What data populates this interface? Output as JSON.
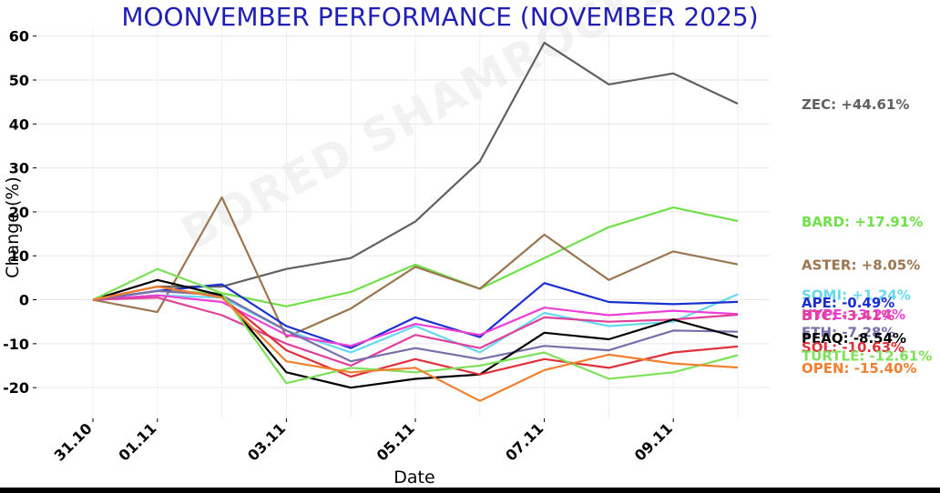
{
  "chart_data": {
    "type": "line",
    "title": "MOONVEMBER PERFORMANCE (NOVEMBER 2025)",
    "xlabel": "Date",
    "ylabel": "Change (%)",
    "watermark": "BORED SHAMROCKS",
    "ylim": [
      -27,
      62
    ],
    "yticks": [
      -20,
      -10,
      0,
      10,
      20,
      30,
      40,
      50,
      60
    ],
    "x": [
      "31.10",
      "01.11",
      "02.11",
      "03.11",
      "04.11",
      "05.11",
      "06.11",
      "07.11",
      "08.11",
      "09.11",
      "10.11"
    ],
    "xtick_labels": [
      "31.10",
      "01.11",
      "03.11",
      "05.11",
      "07.11",
      "09.11"
    ],
    "grid": true,
    "series": [
      {
        "name": "ZEC",
        "color": "#606060",
        "label": "ZEC: +44.61%",
        "values": [
          0,
          3,
          3,
          7,
          9.5,
          17.8,
          31.5,
          58.5,
          49,
          51.5,
          44.61
        ]
      },
      {
        "name": "BARD",
        "color": "#6fe04a",
        "label": "BARD: +17.91%",
        "values": [
          0,
          2,
          1.5,
          -1.5,
          1.8,
          8,
          2.5,
          9.5,
          16.5,
          21,
          17.91
        ]
      },
      {
        "name": "ASTER",
        "color": "#9b7650",
        "label": "ASTER: +8.05%",
        "values": [
          0,
          -2.8,
          23.3,
          -8.5,
          -2,
          7.5,
          2.5,
          14.8,
          4.5,
          11,
          8.05
        ]
      },
      {
        "name": "SOMI",
        "color": "#66d9f0",
        "label": "SOMI: +1.24%",
        "values": [
          0,
          1,
          0.5,
          -7,
          -12,
          -6,
          -12,
          -3,
          -6,
          -5,
          1.24
        ]
      },
      {
        "name": "APE",
        "color": "#1a2fd0",
        "label": "APE: -0.49%",
        "values": [
          0,
          2,
          3.5,
          -6,
          -11,
          -4,
          -8.5,
          3.8,
          -0.5,
          -1,
          -0.49
        ]
      },
      {
        "name": "HYPE",
        "color": "#ee3fd6",
        "label": "HYPE: -3.24%",
        "values": [
          0,
          1,
          -0.5,
          -8,
          -10.5,
          -5.5,
          -8,
          -1.8,
          -3.5,
          -2.5,
          -3.24
        ]
      },
      {
        "name": "BTC",
        "color": "#e0409a",
        "label": "BTC: -3.41%",
        "values": [
          0,
          0.5,
          -3.5,
          -10,
          -15,
          -8,
          -11,
          -4,
          -5,
          -4.5,
          -3.41
        ]
      },
      {
        "name": "ETH",
        "color": "#7a6eaa",
        "label": "ETH: -7.28%",
        "values": [
          0,
          2,
          1,
          -7,
          -14,
          -11,
          -13.5,
          -10.5,
          -11.5,
          -7,
          -7.28
        ]
      },
      {
        "name": "PEAQ",
        "color": "#000000",
        "label": "PEAQ: -8.54%",
        "values": [
          0,
          4.5,
          1,
          -16.5,
          -20,
          -18,
          -17,
          -7.5,
          -9,
          -4.5,
          -8.54
        ]
      },
      {
        "name": "SOL",
        "color": "#e0303a",
        "label": "SOL: -10.63%",
        "values": [
          0,
          3,
          0.5,
          -11.5,
          -17.5,
          -13.5,
          -17,
          -13.5,
          -15.5,
          -12,
          -10.63
        ]
      },
      {
        "name": "TURTLE",
        "color": "#7fe05a",
        "label": "TURTLE: -12.61%",
        "values": [
          0,
          7,
          1.5,
          -19,
          -15.5,
          -16.5,
          -15,
          -12,
          -18,
          -16.5,
          -12.61
        ]
      },
      {
        "name": "OPEN",
        "color": "#f08030",
        "label": "OPEN: -15.40%",
        "values": [
          0,
          3,
          0.5,
          -14,
          -16.5,
          -15.5,
          -23,
          -16,
          -12.5,
          -14.5,
          -15.4
        ]
      }
    ]
  }
}
